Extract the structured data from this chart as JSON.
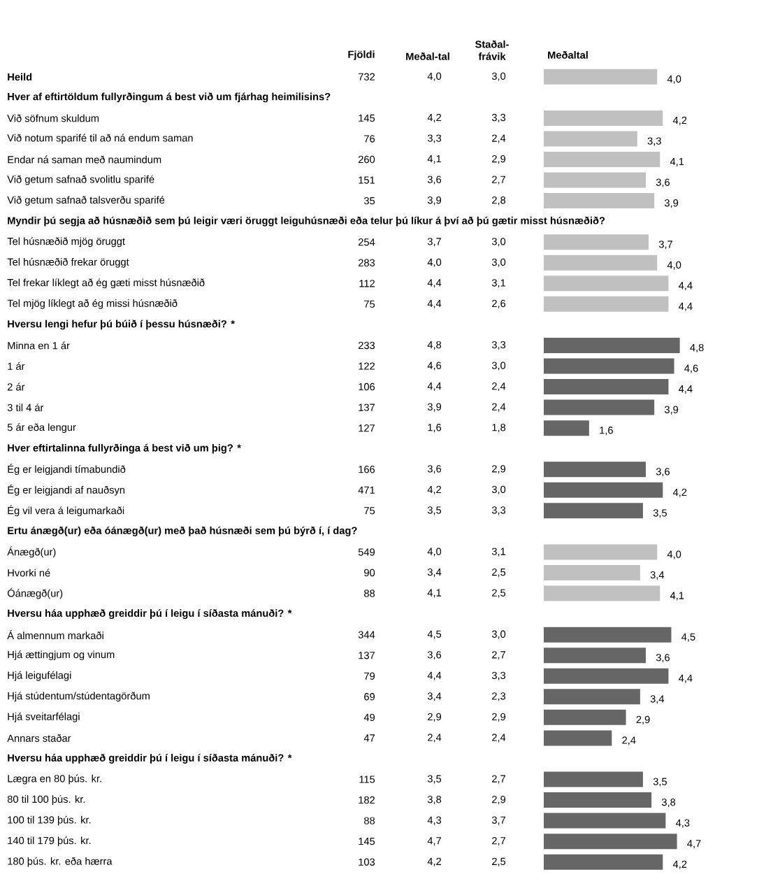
{
  "chart_data": [
    {
      "type": "bar",
      "orientation": "horizontal",
      "title": "Meðaltal",
      "categories": [
        "Heild",
        "Hver af eftirtöldum fullyrðingum á best við um fjárhag heimilisins?",
        "Við söfnum skuldum",
        "Við notum sparifé til að ná endum saman",
        "Endar ná saman með naumindum",
        "Við getum safnað svolitlu sparifé",
        "Við getum safnað talsverðu sparifé",
        "Myndir þú segja að húsnæðið sem þú leigir væri öruggt leiguhúsnæði eða telur þú líkur á því að þú gætir misst húsnæðið?",
        "Tel húsnæðið mjög öruggt",
        "Tel húsnæðið frekar öruggt",
        "Tel frekar líklegt að ég gæti misst húsnæðið",
        "Tel mjög líklegt að ég missi húsnæðið",
        "Hversu lengi hefur þú búið í þessu húsnæði? *",
        "Minna en 1 ár",
        "1 ár",
        "2 ár",
        "3 til 4 ár",
        "5 ár eða lengur",
        "Hver eftirtalinna fullyrðinga á best við um þig? *",
        "Ég er leigjandi tímabundið",
        "Ég er leigjandi af nauðsyn",
        "Ég vil vera á leigumarkaði",
        "Ertu ánægð(ur) eða óánægð(ur) með það húsnæði sem þú býrð í, í dag?",
        "Ánægð(ur)",
        "Hvorki né",
        "Óánægð(ur)",
        "Hversu háa upphæð greiddir þú í leigu í síðasta mánuði? *",
        "Á almennum markaði",
        "Hjá ættingjum og vinum",
        "Hjá leigufélagi",
        "Hjá stúdentum/stúdentagörðum",
        "Hjá sveitarfélagi",
        "Annars staðar",
        "Hversu háa upphæð greiddir þú í leigu í síðasta mánuði? *",
        "Lægra en 80 þús. kr.",
        "80 til 100 þús. kr.",
        "100 til 139 þús. kr.",
        "140 til 179 þús. kr.",
        "180 þús. kr. eða hærra"
      ],
      "values": [
        4.0,
        null,
        4.2,
        3.3,
        4.1,
        3.6,
        3.9,
        null,
        3.7,
        4.0,
        4.4,
        4.4,
        null,
        4.8,
        4.6,
        4.4,
        3.9,
        1.6,
        null,
        3.6,
        4.2,
        3.5,
        null,
        4.0,
        3.4,
        4.1,
        null,
        4.5,
        3.6,
        4.4,
        3.4,
        2.9,
        2.4,
        null,
        3.5,
        3.8,
        4.3,
        4.7,
        4.2
      ],
      "value_labels": [
        "4,0",
        null,
        "4,2",
        "3,3",
        "4,1",
        "3,6",
        "3,9",
        null,
        "3,7",
        "4,0",
        "4,4",
        "4,4",
        null,
        "4,8",
        "4,6",
        "4,4",
        "3,9",
        "1,6",
        null,
        "3,6",
        "4,2",
        "3,5",
        null,
        "4,0",
        "3,4",
        "4,1",
        null,
        "4,5",
        "3,6",
        "4,4",
        "3,4",
        "2,9",
        "2,4",
        null,
        "3,5",
        "3,8",
        "4,3",
        "4,7",
        "4,2"
      ],
      "colors": [
        "#c0c0c0",
        null,
        "#c0c0c0",
        "#c0c0c0",
        "#c0c0c0",
        "#c0c0c0",
        "#c0c0c0",
        null,
        "#c0c0c0",
        "#c0c0c0",
        "#c0c0c0",
        "#c0c0c0",
        null,
        "#666666",
        "#666666",
        "#666666",
        "#666666",
        "#666666",
        null,
        "#666666",
        "#666666",
        "#666666",
        null,
        "#c0c0c0",
        "#c0c0c0",
        "#c0c0c0",
        null,
        "#666666",
        "#666666",
        "#666666",
        "#666666",
        "#666666",
        "#666666",
        null,
        "#666666",
        "#666666",
        "#666666",
        "#666666",
        "#666666"
      ]
    },
    {
      "type": "other",
      "title": "Fjöldi",
      "annotations": [
        "732",
        "145",
        "76",
        "260",
        "151",
        "35",
        "254",
        "283",
        "112",
        "75",
        "233",
        "122",
        "106",
        "137",
        "127",
        "166",
        "471",
        "75",
        "549",
        "90",
        "88",
        "344",
        "137",
        "79",
        "69",
        "49",
        "47",
        "115",
        "182",
        "88",
        "145",
        "103"
      ]
    },
    {
      "type": "other",
      "title": "Meðal-tal",
      "annotations": [
        "4,0",
        "4,2",
        "3,3",
        "4,1",
        "3,6",
        "3,9",
        "3,7",
        "4,0",
        "4,4",
        "4,4",
        "4,8",
        "4,6",
        "4,4",
        "3,9",
        "1,6",
        "3,6",
        "4,2",
        "3,5",
        "4,0",
        "3,4",
        "4,1",
        "4,5",
        "3,6",
        "4,4",
        "3,4",
        "2,9",
        "2,4",
        "3,5",
        "3,8",
        "4,3",
        "4,7",
        "4,2"
      ]
    },
    {
      "type": "other",
      "title": "Staðal-frávik",
      "annotations": [
        "3,0",
        "3,3",
        "2,4",
        "2,9",
        "2,7",
        "2,8",
        "3,0",
        "3,0",
        "3,1",
        "2,6",
        "3,3",
        "3,0",
        "2,4",
        "2,4",
        "1,8",
        "2,9",
        "3,0",
        "3,3",
        "3,1",
        "2,5",
        "2,5",
        "3,0",
        "2,7",
        "3,3",
        "2,3",
        "2,9",
        "2,4",
        "2,7",
        "2,9",
        "3,7",
        "2,7",
        "2,5"
      ]
    }
  ]
}
